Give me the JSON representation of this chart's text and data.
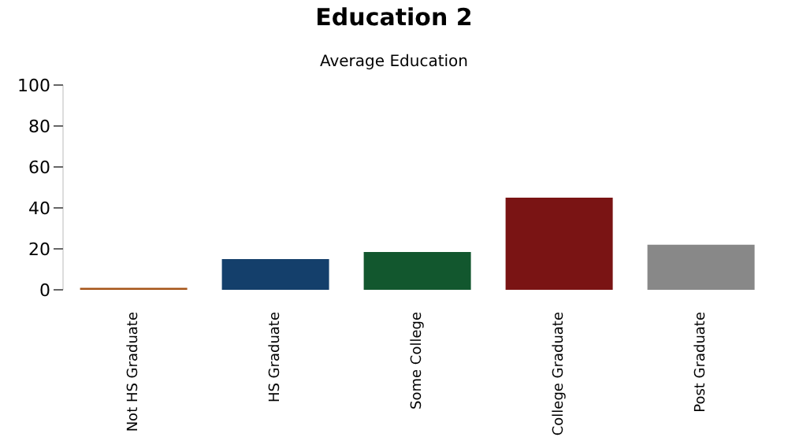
{
  "chart_data": {
    "type": "bar",
    "title": "Education 2",
    "subtitle": "Average Education",
    "categories": [
      "Not HS Graduate",
      "HS Graduate",
      "Some College",
      "College Graduate",
      "Post Graduate"
    ],
    "values": [
      1,
      15,
      18.5,
      45,
      22
    ],
    "colors": [
      "#a65418",
      "#143f6b",
      "#12572e",
      "#7a1414",
      "#888888"
    ],
    "ylim": [
      0,
      100
    ],
    "yticks": [
      0,
      20,
      40,
      60,
      80,
      100
    ],
    "grid": false,
    "legend": false
  }
}
